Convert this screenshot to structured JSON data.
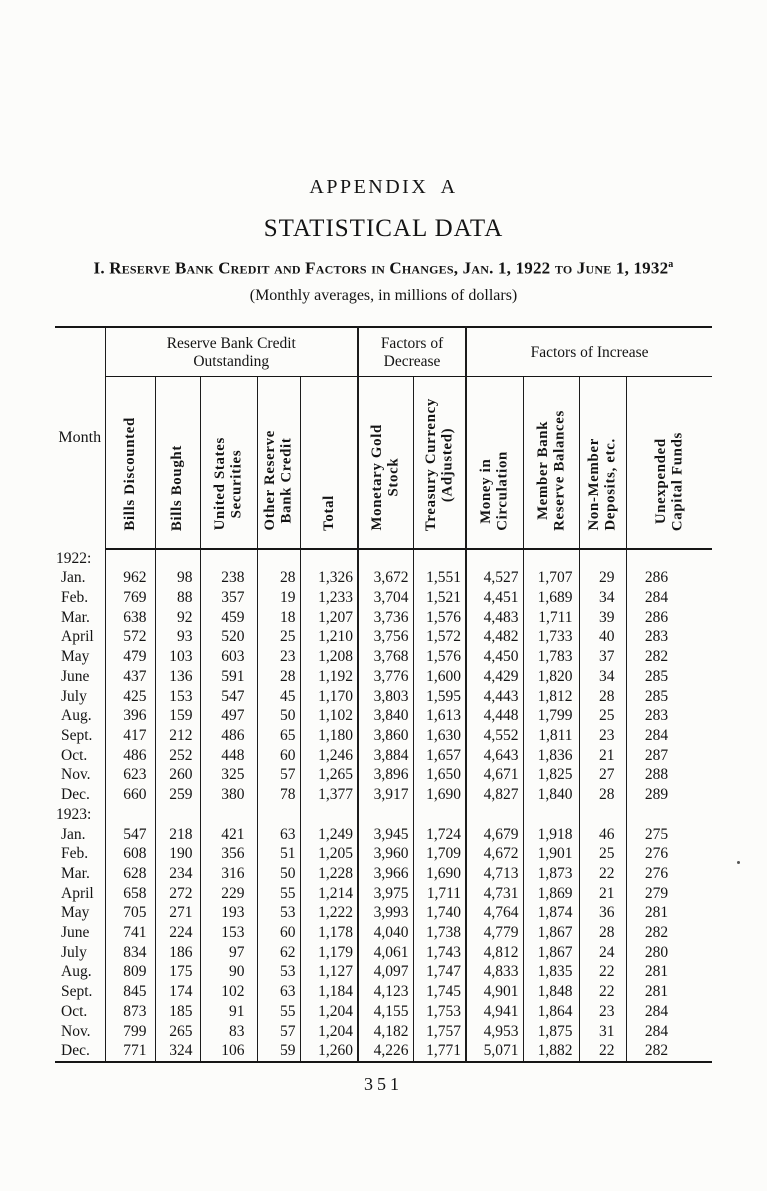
{
  "page": {
    "appendix_label": "APPENDIX A",
    "title": "STATISTICAL DATA",
    "heading": "I. Reserve Bank Credit and Factors in Changes, Jan. 1, 1922 to June 1, 1932",
    "heading_footnote_marker": "a",
    "subheading": "(Monthly averages, in millions of dollars)",
    "page_number": "351"
  },
  "table": {
    "month_header": "Month",
    "groups": [
      {
        "label": "Reserve Bank Credit\nOutstanding"
      },
      {
        "label": "Factors of\nDecrease"
      },
      {
        "label": "Factors of Increase"
      }
    ],
    "columns": [
      "Bills Discounted",
      "Bills Bought",
      "United States\nSecurities",
      "Other Reserve\nBank Credit",
      "Total",
      "Monetary Gold\nStock",
      "Treasury Currency\n(Adjusted)",
      "Money in\nCirculation",
      "Member Bank\nReserve Balances",
      "Non-Member\nDeposits, etc.",
      "Unexpended\nCapital Funds"
    ],
    "sections": [
      {
        "year_label": "1922:",
        "rows": [
          {
            "month": "Jan.",
            "values": [
              "962",
              "98",
              "238",
              "28",
              "1,326",
              "3,672",
              "1,551",
              "4,527",
              "1,707",
              "29",
              "286"
            ]
          },
          {
            "month": "Feb.",
            "values": [
              "769",
              "88",
              "357",
              "19",
              "1,233",
              "3,704",
              "1,521",
              "4,451",
              "1,689",
              "34",
              "284"
            ]
          },
          {
            "month": "Mar.",
            "values": [
              "638",
              "92",
              "459",
              "18",
              "1,207",
              "3,736",
              "1,576",
              "4,483",
              "1,711",
              "39",
              "286"
            ]
          },
          {
            "month": "April",
            "values": [
              "572",
              "93",
              "520",
              "25",
              "1,210",
              "3,756",
              "1,572",
              "4,482",
              "1,733",
              "40",
              "283"
            ]
          },
          {
            "month": "May",
            "values": [
              "479",
              "103",
              "603",
              "23",
              "1,208",
              "3,768",
              "1,576",
              "4,450",
              "1,783",
              "37",
              "282"
            ]
          },
          {
            "month": "June",
            "values": [
              "437",
              "136",
              "591",
              "28",
              "1,192",
              "3,776",
              "1,600",
              "4,429",
              "1,820",
              "34",
              "285"
            ]
          },
          {
            "month": "July",
            "values": [
              "425",
              "153",
              "547",
              "45",
              "1,170",
              "3,803",
              "1,595",
              "4,443",
              "1,812",
              "28",
              "285"
            ]
          },
          {
            "month": "Aug.",
            "values": [
              "396",
              "159",
              "497",
              "50",
              "1,102",
              "3,840",
              "1,613",
              "4,448",
              "1,799",
              "25",
              "283"
            ]
          },
          {
            "month": "Sept.",
            "values": [
              "417",
              "212",
              "486",
              "65",
              "1,180",
              "3,860",
              "1,630",
              "4,552",
              "1,811",
              "23",
              "284"
            ]
          },
          {
            "month": "Oct.",
            "values": [
              "486",
              "252",
              "448",
              "60",
              "1,246",
              "3,884",
              "1,657",
              "4,643",
              "1,836",
              "21",
              "287"
            ]
          },
          {
            "month": "Nov.",
            "values": [
              "623",
              "260",
              "325",
              "57",
              "1,265",
              "3,896",
              "1,650",
              "4,671",
              "1,825",
              "27",
              "288"
            ]
          },
          {
            "month": "Dec.",
            "values": [
              "660",
              "259",
              "380",
              "78",
              "1,377",
              "3,917",
              "1,690",
              "4,827",
              "1,840",
              "28",
              "289"
            ]
          }
        ]
      },
      {
        "year_label": "1923:",
        "rows": [
          {
            "month": "Jan.",
            "values": [
              "547",
              "218",
              "421",
              "63",
              "1,249",
              "3,945",
              "1,724",
              "4,679",
              "1,918",
              "46",
              "275"
            ]
          },
          {
            "month": "Feb.",
            "values": [
              "608",
              "190",
              "356",
              "51",
              "1,205",
              "3,960",
              "1,709",
              "4,672",
              "1,901",
              "25",
              "276"
            ]
          },
          {
            "month": "Mar.",
            "values": [
              "628",
              "234",
              "316",
              "50",
              "1,228",
              "3,966",
              "1,690",
              "4,713",
              "1,873",
              "22",
              "276"
            ]
          },
          {
            "month": "April",
            "values": [
              "658",
              "272",
              "229",
              "55",
              "1,214",
              "3,975",
              "1,711",
              "4,731",
              "1,869",
              "21",
              "279"
            ]
          },
          {
            "month": "May",
            "values": [
              "705",
              "271",
              "193",
              "53",
              "1,222",
              "3,993",
              "1,740",
              "4,764",
              "1,874",
              "36",
              "281"
            ]
          },
          {
            "month": "June",
            "values": [
              "741",
              "224",
              "153",
              "60",
              "1,178",
              "4,040",
              "1,738",
              "4,779",
              "1,867",
              "28",
              "282"
            ]
          },
          {
            "month": "July",
            "values": [
              "834",
              "186",
              "97",
              "62",
              "1,179",
              "4,061",
              "1,743",
              "4,812",
              "1,867",
              "24",
              "280"
            ]
          },
          {
            "month": "Aug.",
            "values": [
              "809",
              "175",
              "90",
              "53",
              "1,127",
              "4,097",
              "1,747",
              "4,833",
              "1,835",
              "22",
              "281"
            ]
          },
          {
            "month": "Sept.",
            "values": [
              "845",
              "174",
              "102",
              "63",
              "1,184",
              "4,123",
              "1,745",
              "4,901",
              "1,848",
              "22",
              "281"
            ]
          },
          {
            "month": "Oct.",
            "values": [
              "873",
              "185",
              "91",
              "55",
              "1,204",
              "4,155",
              "1,753",
              "4,941",
              "1,864",
              "23",
              "284"
            ]
          },
          {
            "month": "Nov.",
            "values": [
              "799",
              "265",
              "83",
              "57",
              "1,204",
              "4,182",
              "1,757",
              "4,953",
              "1,875",
              "31",
              "284"
            ]
          },
          {
            "month": "Dec.",
            "values": [
              "771",
              "324",
              "106",
              "59",
              "1,260",
              "4,226",
              "1,771",
              "5,071",
              "1,882",
              "22",
              "282"
            ]
          }
        ]
      }
    ]
  }
}
